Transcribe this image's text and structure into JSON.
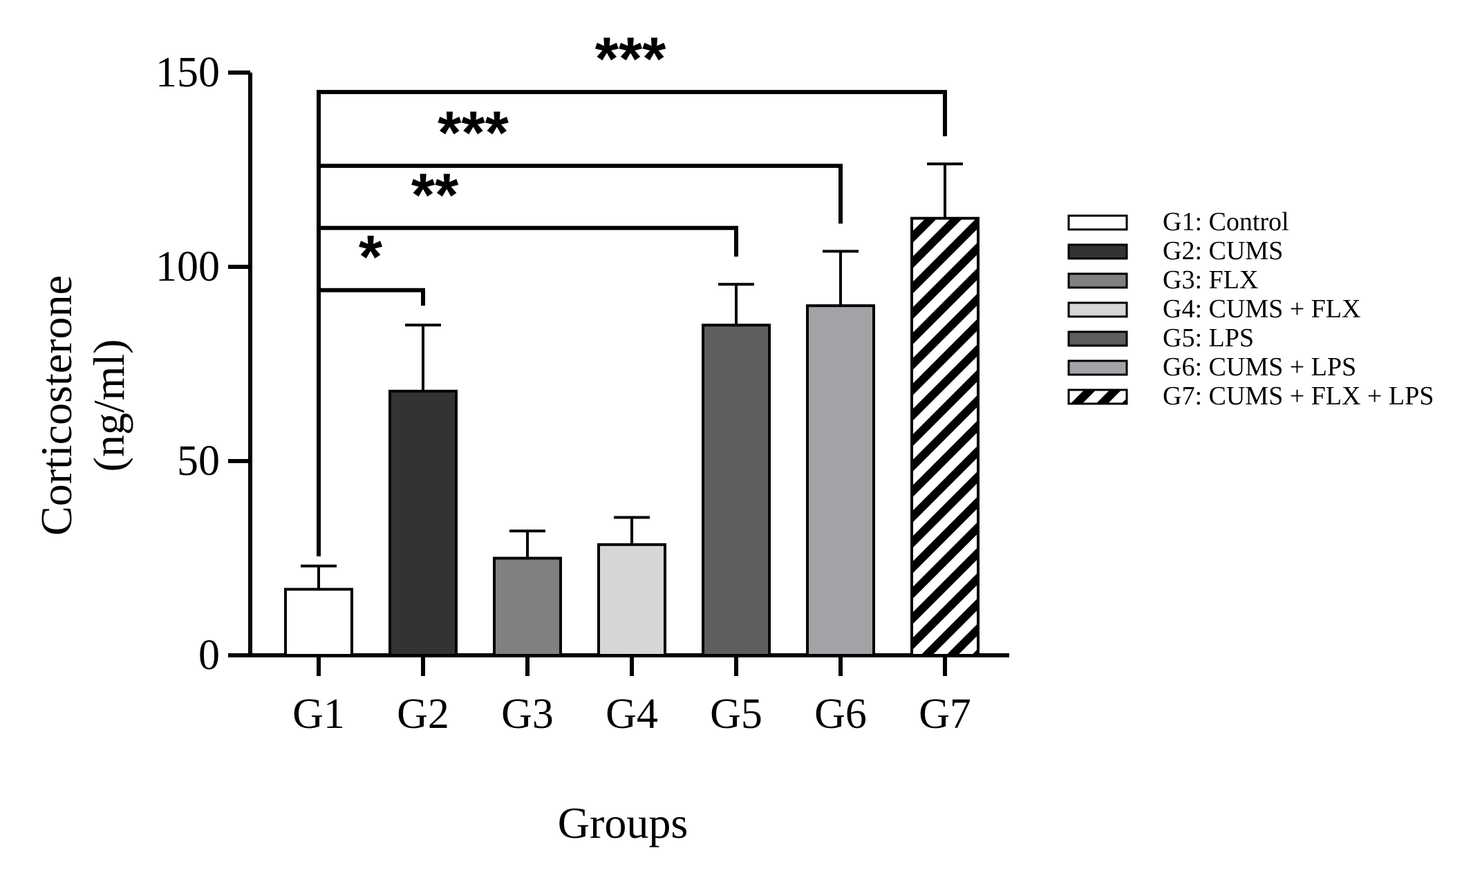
{
  "chart_data": {
    "type": "bar",
    "title": "",
    "xlabel": "Groups",
    "ylabel_lines": [
      "Corticosterone",
      "(ng/ml)"
    ],
    "ylim": [
      0,
      150
    ],
    "yticks": [
      "0",
      "50",
      "100",
      "150"
    ],
    "categories": [
      "G1",
      "G2",
      "G3",
      "G4",
      "G5",
      "G6",
      "G7"
    ],
    "values": [
      17,
      68,
      25,
      28.5,
      85,
      90,
      112.5
    ],
    "errors": [
      6,
      17,
      7,
      7,
      10.5,
      14,
      14
    ],
    "colors": [
      "#ffffff",
      "#333333",
      "#808080",
      "#d6d6d6",
      "#5e5e5e",
      "#a3a3a7",
      "pattern-diagonal"
    ],
    "legend_position": "right",
    "legend": [
      {
        "label": "G1: Control",
        "color": "#ffffff"
      },
      {
        "label": "G2: CUMS",
        "color": "#333333"
      },
      {
        "label": "G3: FLX",
        "color": "#808080"
      },
      {
        "label": "G4: CUMS + FLX",
        "color": "#d6d6d6"
      },
      {
        "label": "G5: LPS",
        "color": "#5e5e5e"
      },
      {
        "label": "G6: CUMS + LPS",
        "color": "#a3a3a7"
      },
      {
        "label": "G7: CUMS + FLX + LPS",
        "color": "pattern-diagonal"
      }
    ],
    "significance": [
      {
        "from": 0,
        "to": 1,
        "level": 94,
        "end_level": 90,
        "label": "*"
      },
      {
        "from": 0,
        "to": 4,
        "level": 110,
        "label": "**"
      },
      {
        "from": 0,
        "to": 5,
        "level": 126,
        "label": "***"
      },
      {
        "from": 0,
        "to": 6,
        "level": 145,
        "label": "***"
      }
    ]
  }
}
